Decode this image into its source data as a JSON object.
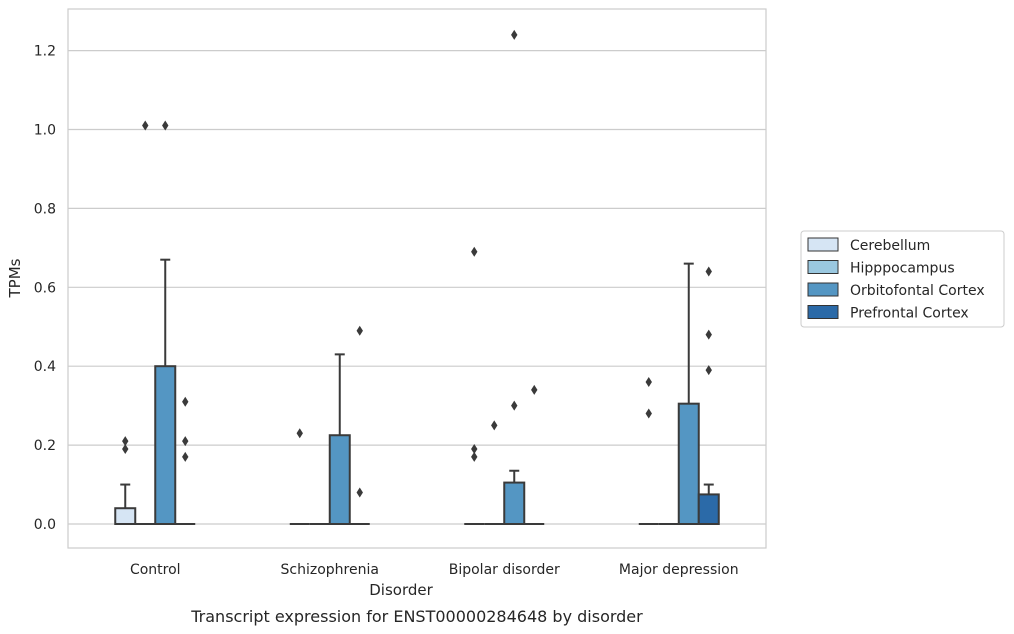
{
  "chart_data": {
    "type": "box",
    "title": "",
    "caption": "Transcript expression for ENST00000284648 by disorder",
    "xlabel": "Disorder",
    "ylabel": "TPMs",
    "ylim": [
      -0.06,
      1.3
    ],
    "yticks": [
      0.0,
      0.2,
      0.4,
      0.6,
      0.8,
      1.0,
      1.2
    ],
    "ytick_labels": [
      "0.0",
      "0.2",
      "0.4",
      "0.6",
      "0.8",
      "1.0",
      "1.2"
    ],
    "grid": "horizontal",
    "legend_position": "right",
    "categories": [
      "Control",
      "Schizophrenia",
      "Bipolar disorder",
      "Major depression"
    ],
    "series": [
      {
        "name": "Cerebellum",
        "color": "#d6e5f4",
        "boxes": [
          {
            "q1": 0.0,
            "median": 0.0,
            "q3": 0.04,
            "whislo": 0.0,
            "whishi": 0.1,
            "fliers": [
              0.19,
              0.21
            ]
          },
          {
            "q1": 0.0,
            "median": 0.0,
            "q3": 0.0,
            "whislo": 0.0,
            "whishi": 0.0,
            "fliers": [
              0.23
            ]
          },
          {
            "q1": 0.0,
            "median": 0.0,
            "q3": 0.0,
            "whislo": 0.0,
            "whishi": 0.0,
            "fliers": [
              0.17,
              0.19,
              0.69
            ]
          },
          {
            "q1": 0.0,
            "median": 0.0,
            "q3": 0.0,
            "whislo": 0.0,
            "whishi": 0.0,
            "fliers": [
              0.28,
              0.36
            ]
          }
        ]
      },
      {
        "name": "Hipppocampus",
        "color": "#9ac8e0",
        "boxes": [
          {
            "q1": 0.0,
            "median": 0.0,
            "q3": 0.0,
            "whislo": 0.0,
            "whishi": 0.0,
            "fliers": [
              1.01
            ]
          },
          {
            "q1": 0.0,
            "median": 0.0,
            "q3": 0.0,
            "whislo": 0.0,
            "whishi": 0.0,
            "fliers": []
          },
          {
            "q1": 0.0,
            "median": 0.0,
            "q3": 0.0,
            "whislo": 0.0,
            "whishi": 0.0,
            "fliers": [
              0.25
            ]
          },
          {
            "q1": 0.0,
            "median": 0.0,
            "q3": 0.0,
            "whislo": 0.0,
            "whishi": 0.0,
            "fliers": []
          }
        ]
      },
      {
        "name": "Orbitofontal Cortex",
        "color": "#5496c3",
        "boxes": [
          {
            "q1": 0.0,
            "median": 0.0,
            "q3": 0.4,
            "whislo": 0.0,
            "whishi": 0.67,
            "fliers": [
              1.01
            ]
          },
          {
            "q1": 0.0,
            "median": 0.0,
            "q3": 0.225,
            "whislo": 0.0,
            "whishi": 0.43,
            "fliers": []
          },
          {
            "q1": 0.0,
            "median": 0.0,
            "q3": 0.105,
            "whislo": 0.0,
            "whishi": 0.135,
            "fliers": [
              0.3,
              1.24
            ]
          },
          {
            "q1": 0.0,
            "median": 0.0,
            "q3": 0.305,
            "whislo": 0.0,
            "whishi": 0.66,
            "fliers": []
          }
        ]
      },
      {
        "name": "Prefrontal Cortex",
        "color": "#2b6aa8",
        "boxes": [
          {
            "q1": 0.0,
            "median": 0.0,
            "q3": 0.0,
            "whislo": 0.0,
            "whishi": 0.0,
            "fliers": [
              0.17,
              0.21,
              0.31
            ]
          },
          {
            "q1": 0.0,
            "median": 0.0,
            "q3": 0.0,
            "whislo": 0.0,
            "whishi": 0.0,
            "fliers": [
              0.08,
              0.49
            ]
          },
          {
            "q1": 0.0,
            "median": 0.0,
            "q3": 0.0,
            "whislo": 0.0,
            "whishi": 0.0,
            "fliers": [
              0.34
            ]
          },
          {
            "q1": 0.0,
            "median": 0.0,
            "q3": 0.075,
            "whislo": 0.0,
            "whishi": 0.1,
            "fliers": [
              0.39,
              0.48,
              0.64
            ]
          }
        ]
      }
    ]
  }
}
